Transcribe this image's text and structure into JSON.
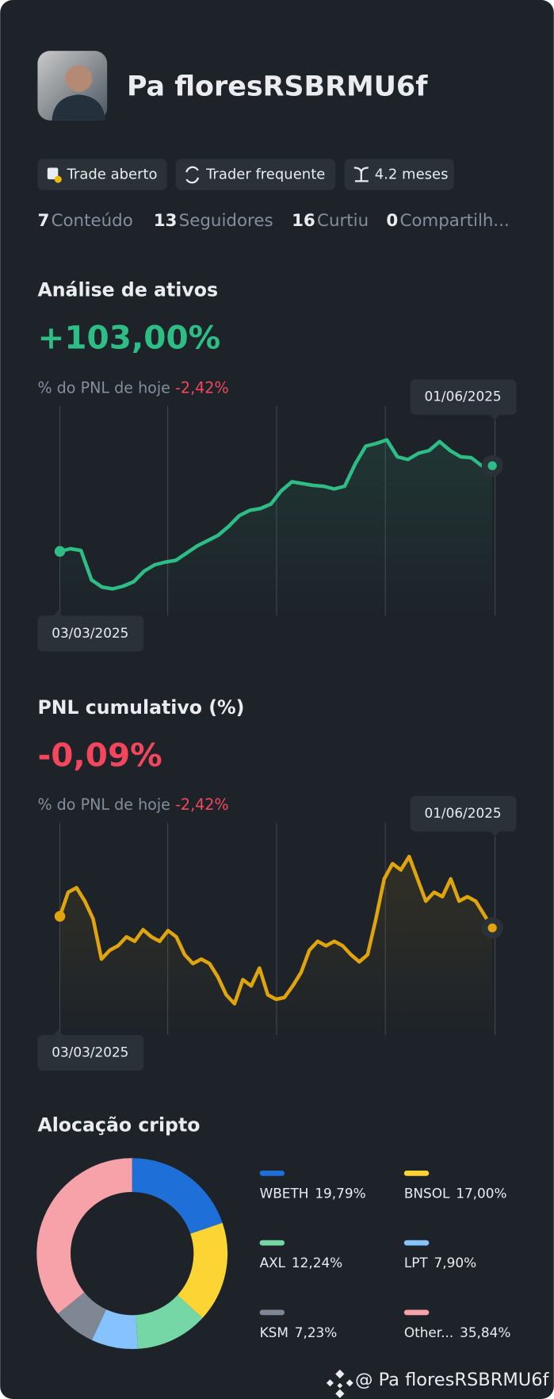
{
  "profile": {
    "name": "Pa floresRSBRMU6f",
    "tags": [
      "Trade aberto",
      "Trader frequente",
      "4.2 meses"
    ],
    "stats": [
      {
        "value": 7,
        "label": "Conteúdo"
      },
      {
        "value": 13,
        "label": "Seguidores"
      },
      {
        "value": 16,
        "label": "Curtiu"
      },
      {
        "value": 0,
        "label": "Compartilh..."
      }
    ]
  },
  "asset_analysis": {
    "title": "Análise de ativos",
    "value": "+103,00%",
    "today_label": "% do PNL de hoje",
    "today_value": "-2,42%",
    "start_date": "03/03/2025",
    "end_date": "01/06/2025",
    "values": [
      72,
      75,
      73,
      40,
      32,
      30,
      33,
      38,
      50,
      57,
      60,
      62,
      70,
      78,
      84,
      90,
      100,
      112,
      118,
      120,
      125,
      140,
      150,
      148,
      146,
      145,
      142,
      145,
      170,
      190,
      193,
      197,
      178,
      175,
      182,
      185,
      195,
      185,
      178,
      177,
      168,
      168
    ]
  },
  "pnl_cumulative": {
    "title": "PNL cumulativo (%)",
    "value": "-0,09%",
    "today_label": "% do PNL de hoje",
    "today_value": "-2,42%",
    "start_date": "03/03/2025",
    "end_date": "01/06/2025",
    "values": [
      133,
      160,
      165,
      150,
      130,
      85,
      95,
      100,
      110,
      105,
      118,
      110,
      105,
      117,
      110,
      90,
      80,
      85,
      80,
      65,
      45,
      35,
      62,
      55,
      75,
      45,
      40,
      42,
      55,
      70,
      95,
      105,
      100,
      105,
      100,
      90,
      82,
      90,
      130,
      175,
      192,
      185,
      200,
      175,
      150,
      160,
      155,
      175,
      150,
      155,
      150,
      135,
      120
    ]
  },
  "allocation": {
    "title": "Alocação cripto",
    "items": [
      {
        "name": "WBETH",
        "value": 19.79,
        "label": "19,79%",
        "color": "#1f6fd9"
      },
      {
        "name": "BNSOL",
        "value": 17.0,
        "label": "17,00%",
        "color": "#fcd535"
      },
      {
        "name": "AXL",
        "value": 12.24,
        "label": "12,24%",
        "color": "#76d7a6"
      },
      {
        "name": "LPT",
        "value": 7.9,
        "label": "7,90%",
        "color": "#86c2fd"
      },
      {
        "name": "KSM",
        "value": 7.23,
        "label": "7,23%",
        "color": "#7f8794"
      },
      {
        "name": "Other...",
        "value": 35.84,
        "label": "35,84%",
        "color": "#f7a1a9"
      }
    ]
  },
  "watermark": "@ Pa floresRSBRMU6f"
}
